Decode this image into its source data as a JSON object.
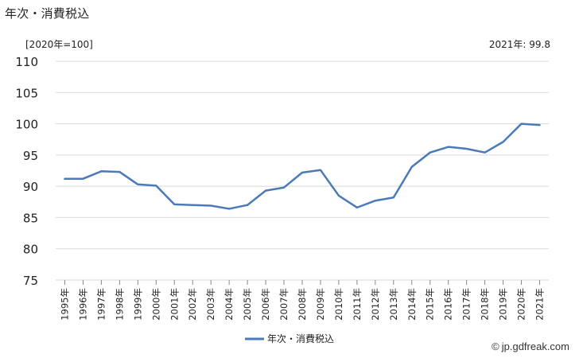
{
  "title": "年次・消費税込",
  "unit_note": "[2020年=100]",
  "latest_note": "2021年: 99.8",
  "source": "jp.gdfreak.com",
  "source_symbol": "©",
  "colors": {
    "line": "#4a7ab8",
    "grid": "#d9d9d9",
    "axis": "#888888",
    "text": "#222222"
  },
  "chart_data": {
    "type": "line",
    "categories": [
      "1995年",
      "1996年",
      "1997年",
      "1998年",
      "1999年",
      "2000年",
      "2001年",
      "2002年",
      "2003年",
      "2004年",
      "2005年",
      "2006年",
      "2007年",
      "2008年",
      "2009年",
      "2010年",
      "2011年",
      "2012年",
      "2013年",
      "2014年",
      "2015年",
      "2016年",
      "2017年",
      "2018年",
      "2019年",
      "2020年",
      "2021年"
    ],
    "series": [
      {
        "name": "年次・消費税込",
        "values": [
          91.2,
          91.2,
          92.4,
          92.3,
          90.3,
          90.1,
          87.1,
          87.0,
          86.9,
          86.4,
          87.0,
          89.3,
          89.8,
          92.2,
          92.6,
          88.5,
          86.6,
          87.7,
          88.2,
          93.1,
          95.4,
          96.3,
          96.0,
          95.4,
          97.1,
          100.0,
          99.8
        ]
      }
    ],
    "ylim": [
      75,
      110
    ],
    "yticks": [
      75,
      80,
      85,
      90,
      95,
      100,
      105,
      110
    ],
    "grid": true,
    "legend": "bottom-center",
    "title": "年次・消費税込",
    "xlabel": "",
    "ylabel": ""
  }
}
